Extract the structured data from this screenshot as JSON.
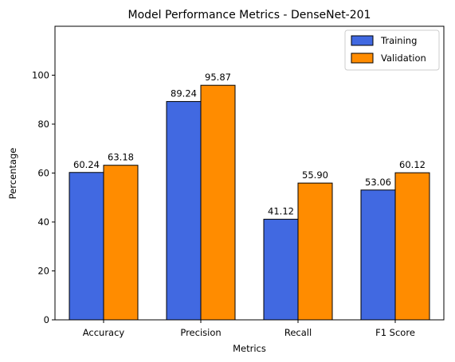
{
  "chart_data": {
    "type": "bar",
    "title": "Model Performance Metrics - DenseNet-201",
    "xlabel": "Metrics",
    "ylabel": "Percentage",
    "categories": [
      "Accuracy",
      "Precision",
      "Recall",
      "F1 Score"
    ],
    "series": [
      {
        "name": "Training",
        "values": [
          60.24,
          89.24,
          41.12,
          53.06
        ],
        "labels": [
          "60.24",
          "89.24",
          "41.12",
          "53.06"
        ],
        "color": "#4169e1"
      },
      {
        "name": "Validation",
        "values": [
          63.18,
          95.87,
          55.9,
          60.12
        ],
        "labels": [
          "63.18",
          "95.87",
          "55.90",
          "60.12"
        ],
        "color": "#ff8c00"
      }
    ],
    "ylim": [
      0,
      120
    ],
    "yticks": [
      0,
      20,
      40,
      60,
      80,
      100
    ],
    "grid": false,
    "legend_position": "top-right"
  }
}
